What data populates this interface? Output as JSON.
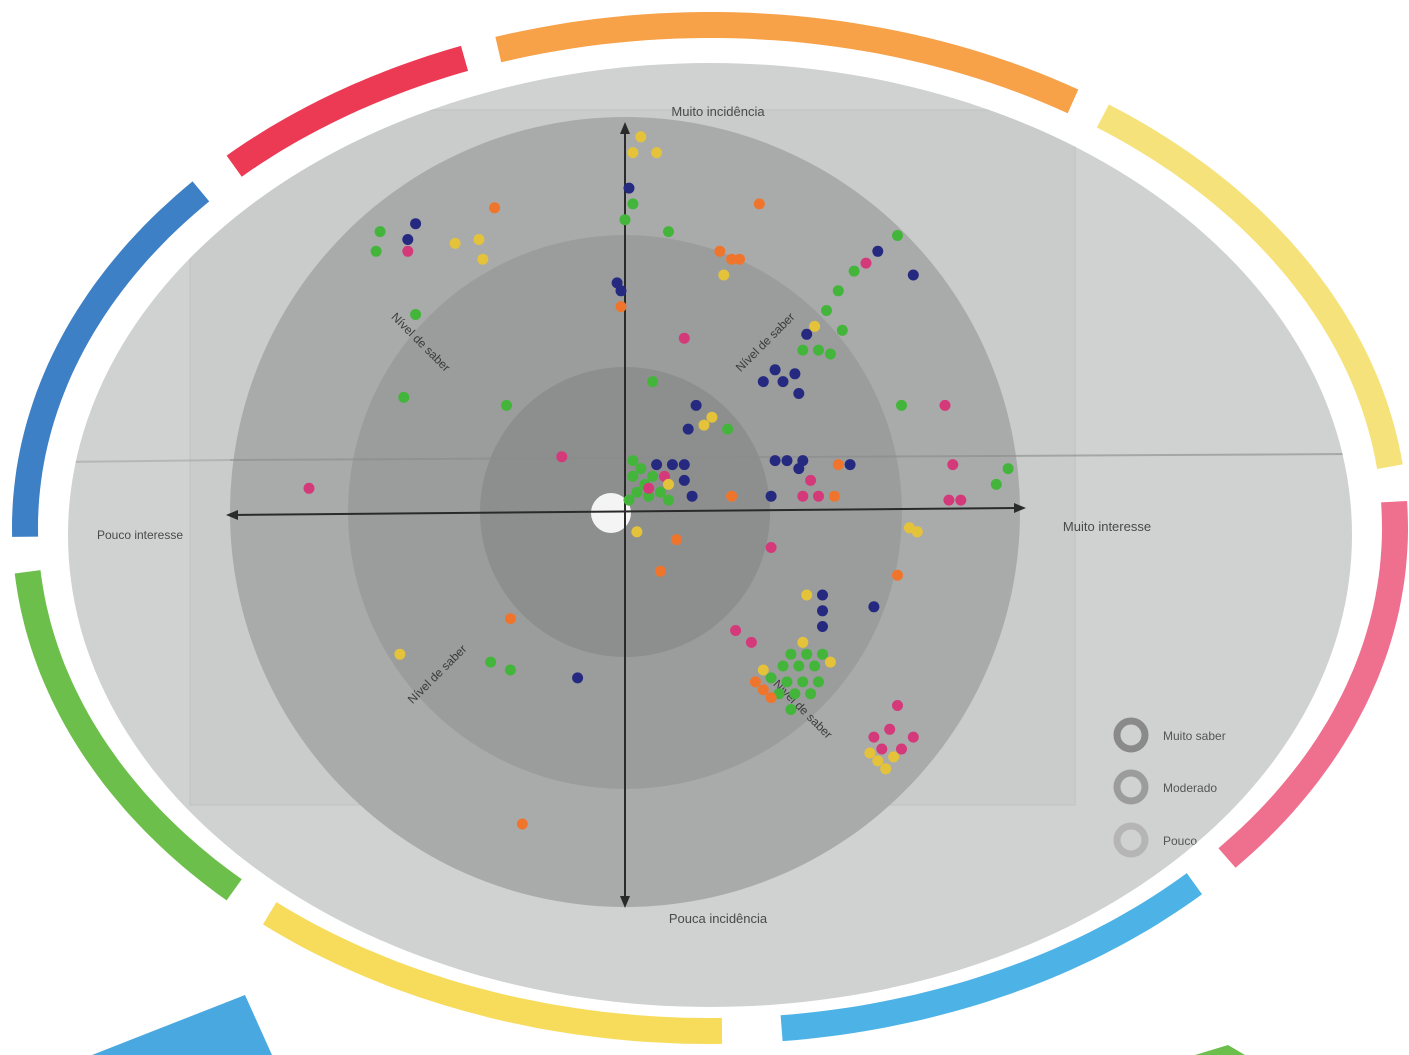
{
  "labels": {
    "top": "Muito incidência",
    "bottom": "Pouca incidência",
    "left": "Pouco interesse",
    "right": "Muito interesse",
    "diag_top_left": "Nível de saber",
    "diag_top_right": "Nível de saber",
    "diag_bottom_left": "Nível de saber",
    "diag_bottom_right": "Nível de saber"
  },
  "legend": [
    {
      "label": "Muito saber",
      "ring_color": "#8a8a8a"
    },
    {
      "label": "Moderado",
      "ring_color": "#9c9c9c"
    },
    {
      "label": "Pouco",
      "ring_color": "#b5b5b5"
    }
  ],
  "frame_segments": [
    {
      "color": "#f7a149",
      "name": "orange"
    },
    {
      "color": "#f5e27a",
      "name": "yellow-light"
    },
    {
      "color": "#ef6f8e",
      "name": "pink"
    },
    {
      "color": "#4db3e6",
      "name": "sky-blue"
    },
    {
      "color": "#f7dc5c",
      "name": "yellow"
    },
    {
      "color": "#6dbf4b",
      "name": "green"
    },
    {
      "color": "#3e80c5",
      "name": "blue"
    },
    {
      "color": "#ec3a55",
      "name": "red"
    }
  ],
  "dot_colors": {
    "green": "#43b53a",
    "navy": "#252a80",
    "yellow": "#e4c23a",
    "orange": "#f0752c",
    "pink": "#d43a7a"
  },
  "points": [
    [
      "yellow",
      0.04,
      0.95
    ],
    [
      "yellow",
      0.02,
      0.91
    ],
    [
      "yellow",
      0.08,
      0.91
    ],
    [
      "navy",
      0.01,
      0.82
    ],
    [
      "green",
      0.02,
      0.78
    ],
    [
      "green",
      0.0,
      0.74
    ],
    [
      "green",
      0.11,
      0.71
    ],
    [
      "navy",
      -0.02,
      0.58
    ],
    [
      "navy",
      -0.01,
      0.56
    ],
    [
      "orange",
      -0.01,
      0.52
    ],
    [
      "pink",
      0.15,
      0.44
    ],
    [
      "green",
      0.07,
      0.33
    ],
    [
      "navy",
      0.18,
      0.27
    ],
    [
      "yellow",
      0.22,
      0.24
    ],
    [
      "yellow",
      0.2,
      0.22
    ],
    [
      "green",
      0.26,
      0.21
    ],
    [
      "navy",
      0.16,
      0.21
    ],
    [
      "orange",
      0.34,
      0.78
    ],
    [
      "orange",
      0.24,
      0.66
    ],
    [
      "orange",
      0.27,
      0.64
    ],
    [
      "orange",
      0.29,
      0.64
    ],
    [
      "yellow",
      0.25,
      0.6
    ],
    [
      "green",
      0.69,
      0.7
    ],
    [
      "navy",
      0.64,
      0.66
    ],
    [
      "pink",
      0.61,
      0.63
    ],
    [
      "green",
      0.58,
      0.61
    ],
    [
      "navy",
      0.73,
      0.6
    ],
    [
      "green",
      0.54,
      0.56
    ],
    [
      "green",
      0.51,
      0.51
    ],
    [
      "green",
      0.55,
      0.46
    ],
    [
      "yellow",
      0.48,
      0.47
    ],
    [
      "navy",
      0.46,
      0.45
    ],
    [
      "green",
      0.45,
      0.41
    ],
    [
      "green",
      0.49,
      0.41
    ],
    [
      "green",
      0.52,
      0.4
    ],
    [
      "navy",
      0.38,
      0.36
    ],
    [
      "navy",
      0.43,
      0.35
    ],
    [
      "navy",
      0.35,
      0.33
    ],
    [
      "navy",
      0.4,
      0.33
    ],
    [
      "navy",
      0.44,
      0.3
    ],
    [
      "green",
      0.7,
      0.27
    ],
    [
      "pink",
      0.81,
      0.27
    ],
    [
      "green",
      -0.62,
      0.71
    ],
    [
      "navy",
      -0.53,
      0.73
    ],
    [
      "navy",
      -0.55,
      0.69
    ],
    [
      "yellow",
      -0.43,
      0.68
    ],
    [
      "yellow",
      -0.37,
      0.69
    ],
    [
      "orange",
      -0.33,
      0.77
    ],
    [
      "green",
      -0.63,
      0.66
    ],
    [
      "pink",
      -0.55,
      0.66
    ],
    [
      "yellow",
      -0.36,
      0.64
    ],
    [
      "green",
      -0.53,
      0.5
    ],
    [
      "green",
      -0.56,
      0.29
    ],
    [
      "green",
      -0.3,
      0.27
    ],
    [
      "pink",
      -0.16,
      0.14
    ],
    [
      "pink",
      -0.8,
      0.06
    ],
    [
      "green",
      0.02,
      0.13
    ],
    [
      "green",
      0.04,
      0.11
    ],
    [
      "green",
      0.02,
      0.09
    ],
    [
      "green",
      0.05,
      0.07
    ],
    [
      "green",
      0.07,
      0.09
    ],
    [
      "green",
      0.03,
      0.05
    ],
    [
      "green",
      0.06,
      0.04
    ],
    [
      "green",
      0.09,
      0.05
    ],
    [
      "green",
      0.11,
      0.03
    ],
    [
      "green",
      0.01,
      0.03
    ],
    [
      "navy",
      0.08,
      0.12
    ],
    [
      "navy",
      0.12,
      0.12
    ],
    [
      "navy",
      0.15,
      0.12
    ],
    [
      "navy",
      0.15,
      0.08
    ],
    [
      "navy",
      0.17,
      0.04
    ],
    [
      "pink",
      0.1,
      0.09
    ],
    [
      "pink",
      0.06,
      0.06
    ],
    [
      "yellow",
      0.11,
      0.07
    ],
    [
      "orange",
      0.27,
      0.04
    ],
    [
      "navy",
      0.37,
      0.04
    ],
    [
      "pink",
      0.45,
      0.04
    ],
    [
      "pink",
      0.49,
      0.04
    ],
    [
      "orange",
      0.53,
      0.04
    ],
    [
      "pink",
      0.47,
      0.08
    ],
    [
      "navy",
      0.38,
      0.13
    ],
    [
      "navy",
      0.41,
      0.13
    ],
    [
      "navy",
      0.45,
      0.13
    ],
    [
      "navy",
      0.44,
      0.11
    ],
    [
      "orange",
      0.54,
      0.12
    ],
    [
      "navy",
      0.57,
      0.12
    ],
    [
      "pink",
      0.83,
      0.12
    ],
    [
      "green",
      0.97,
      0.11
    ],
    [
      "green",
      0.94,
      0.07
    ],
    [
      "pink",
      0.82,
      0.03
    ],
    [
      "pink",
      0.85,
      0.03
    ],
    [
      "yellow",
      0.72,
      -0.04
    ],
    [
      "yellow",
      0.74,
      -0.05
    ],
    [
      "yellow",
      0.03,
      -0.05
    ],
    [
      "orange",
      0.13,
      -0.07
    ],
    [
      "orange",
      0.09,
      -0.15
    ],
    [
      "pink",
      0.37,
      -0.09
    ],
    [
      "orange",
      0.69,
      -0.16
    ],
    [
      "yellow",
      0.46,
      -0.21
    ],
    [
      "navy",
      0.5,
      -0.21
    ],
    [
      "navy",
      0.5,
      -0.25
    ],
    [
      "navy",
      0.5,
      -0.29
    ],
    [
      "navy",
      0.63,
      -0.24
    ],
    [
      "pink",
      0.28,
      -0.3
    ],
    [
      "pink",
      0.32,
      -0.33
    ],
    [
      "yellow",
      0.45,
      -0.33
    ],
    [
      "yellow",
      0.35,
      -0.4
    ],
    [
      "green",
      0.42,
      -0.36
    ],
    [
      "green",
      0.46,
      -0.36
    ],
    [
      "green",
      0.5,
      -0.36
    ],
    [
      "green",
      0.4,
      -0.39
    ],
    [
      "green",
      0.44,
      -0.39
    ],
    [
      "green",
      0.48,
      -0.39
    ],
    [
      "yellow",
      0.52,
      -0.38
    ],
    [
      "green",
      0.37,
      -0.42
    ],
    [
      "green",
      0.41,
      -0.43
    ],
    [
      "green",
      0.45,
      -0.43
    ],
    [
      "green",
      0.49,
      -0.43
    ],
    [
      "orange",
      0.33,
      -0.43
    ],
    [
      "orange",
      0.35,
      -0.45
    ],
    [
      "green",
      0.39,
      -0.46
    ],
    [
      "green",
      0.43,
      -0.46
    ],
    [
      "green",
      0.47,
      -0.46
    ],
    [
      "orange",
      0.37,
      -0.47
    ],
    [
      "green",
      0.42,
      -0.5
    ],
    [
      "pink",
      0.69,
      -0.49
    ],
    [
      "pink",
      0.67,
      -0.55
    ],
    [
      "pink",
      0.63,
      -0.57
    ],
    [
      "pink",
      0.73,
      -0.57
    ],
    [
      "pink",
      0.65,
      -0.6
    ],
    [
      "pink",
      0.7,
      -0.6
    ],
    [
      "yellow",
      0.62,
      -0.61
    ],
    [
      "yellow",
      0.68,
      -0.62
    ],
    [
      "yellow",
      0.64,
      -0.63
    ],
    [
      "yellow",
      0.66,
      -0.65
    ],
    [
      "orange",
      -0.29,
      -0.27
    ],
    [
      "yellow",
      -0.57,
      -0.36
    ],
    [
      "green",
      -0.34,
      -0.38
    ],
    [
      "green",
      -0.29,
      -0.4
    ],
    [
      "navy",
      -0.12,
      -0.42
    ],
    [
      "orange",
      -0.26,
      -0.79
    ]
  ]
}
